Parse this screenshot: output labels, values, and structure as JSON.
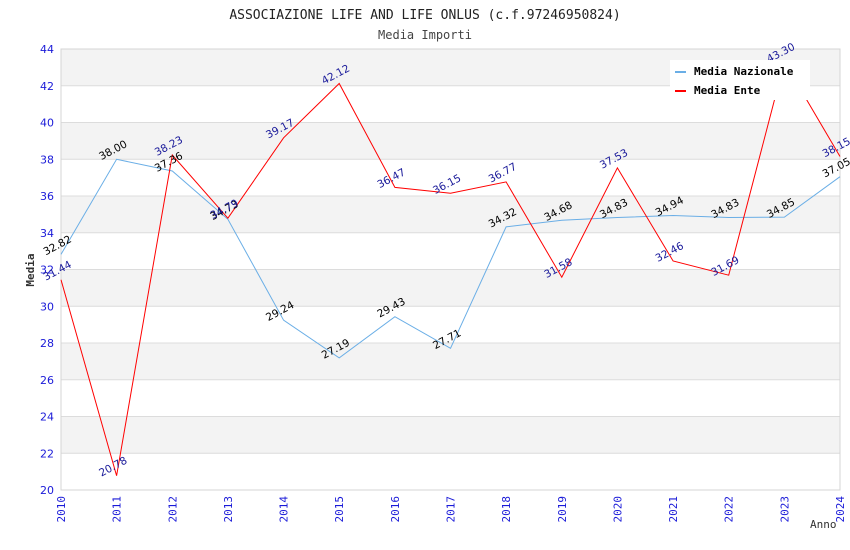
{
  "chart_data": {
    "type": "line",
    "title": "ASSOCIAZIONE LIFE AND LIFE ONLUS (c.f.97246950824)",
    "subtitle": "Media Importi",
    "xlabel": "Anno",
    "ylabel": "Media",
    "ylim": [
      20,
      44
    ],
    "yticks": [
      "20",
      "22",
      "24",
      "26",
      "28",
      "30",
      "32",
      "34",
      "36",
      "38",
      "40",
      "42",
      "44"
    ],
    "grid": true,
    "legend_position": "top-right",
    "categories": [
      "2010",
      "2011",
      "2012",
      "2013",
      "2014",
      "2015",
      "2016",
      "2017",
      "2018",
      "2019",
      "2020",
      "2021",
      "2022",
      "2023",
      "2024"
    ],
    "series": [
      {
        "name": "Media Nazionale",
        "color": "#6aaee6",
        "label_color": "#000000",
        "values": [
          32.82,
          38.0,
          37.36,
          34.73,
          29.24,
          27.19,
          29.43,
          27.71,
          34.32,
          34.68,
          34.83,
          34.94,
          34.83,
          34.85,
          37.05
        ],
        "labels": [
          "32.82",
          "38.00",
          "37.36",
          "34.73",
          "29.24",
          "27.19",
          "29.43",
          "27.71",
          "34.32",
          "34.68",
          "34.83",
          "34.94",
          "34.83",
          "34.85",
          "37.05"
        ]
      },
      {
        "name": "Media Ente",
        "color": "#ff0000",
        "label_color": "#1a1a9a",
        "values": [
          31.44,
          20.78,
          38.23,
          34.79,
          39.17,
          42.12,
          36.47,
          36.15,
          36.77,
          31.58,
          37.53,
          32.46,
          31.69,
          43.3,
          38.15
        ],
        "labels": [
          "31.44",
          "20.78",
          "38.23",
          "34.79",
          "39.17",
          "42.12",
          "36.47",
          "36.15",
          "36.77",
          "31.58",
          "37.53",
          "32.46",
          "31.69",
          "43.30",
          "38.15"
        ]
      }
    ]
  }
}
